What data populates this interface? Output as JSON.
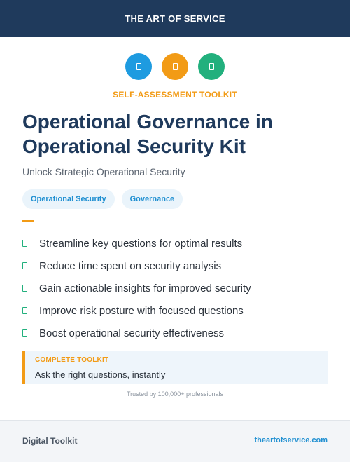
{
  "header": {
    "brand": "THE ART OF SERVICE"
  },
  "icons": [
    {
      "name": "document-icon",
      "color": "#1e9be0"
    },
    {
      "name": "document-icon",
      "color": "#f29b16"
    },
    {
      "name": "document-icon",
      "color": "#22b07d"
    }
  ],
  "eyebrow": "SELF-ASSESSMENT TOOLKIT",
  "title": "Operational Governance in Operational Security Kit",
  "subtitle": "Unlock Strategic Operational Security",
  "tags": [
    "Operational Security",
    "Governance"
  ],
  "bullets": [
    "Streamline key questions for optimal results",
    "Reduce time spent on security analysis",
    "Gain actionable insights for improved security",
    "Improve risk posture with focused questions",
    "Boost operational security effectiveness"
  ],
  "callout": {
    "label": "COMPLETE TOOLKIT",
    "text": "Ask the right questions, instantly"
  },
  "trusted": "Trusted by 100,000+ professionals",
  "footer": {
    "left": "Digital Toolkit",
    "right": "theartofservice.com"
  },
  "colors": {
    "navy": "#1f3a5c",
    "orange": "#f29b16",
    "blue": "#1e9be0",
    "green": "#22b07d"
  }
}
